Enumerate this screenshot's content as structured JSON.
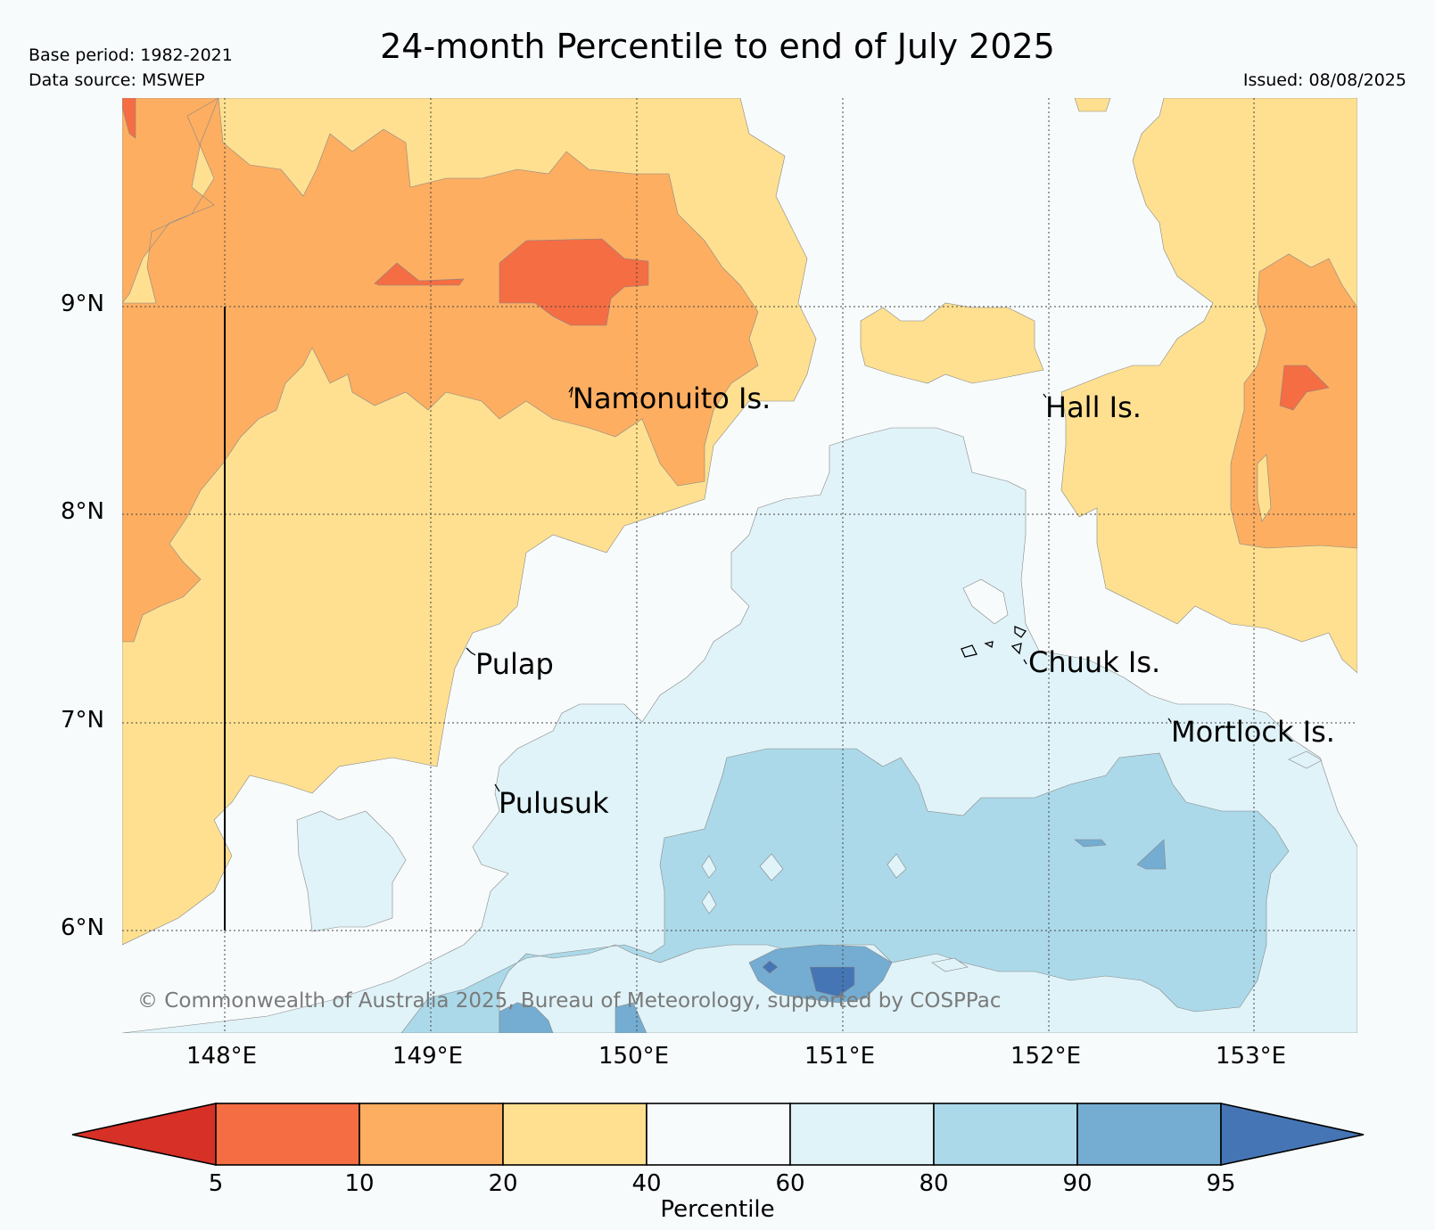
{
  "header": {
    "base_period": "Base period: 1982-2021",
    "data_source": "Data source: MSWEP",
    "title": "24-month Percentile to end of July 2025",
    "issued": "Issued: 08/08/2025"
  },
  "axes": {
    "lat_labels": [
      "9°N",
      "8°N",
      "7°N",
      "6°N"
    ],
    "lon_labels": [
      "148°E",
      "149°E",
      "150°E",
      "151°E",
      "152°E",
      "153°E"
    ]
  },
  "places": {
    "namonuito": "Namonuito Is.",
    "hall": "Hall Is.",
    "pulap": "Pulap",
    "chuuk": "Chuuk Is.",
    "mortlock": "Mortlock Is.",
    "pulusuk": "Pulusuk"
  },
  "copyright": "© Commonwealth of Australia 2025, Bureau of Meteorology, supported by COSPPac",
  "colorbar": {
    "ticks": [
      "5",
      "10",
      "20",
      "40",
      "60",
      "80",
      "90",
      "95"
    ],
    "label": "Percentile",
    "colors": [
      "#d73027",
      "#f46d43",
      "#fdae61",
      "#fee090",
      "#f7fbfc",
      "#e0f3f8",
      "#abd9e9",
      "#74add1",
      "#4575b4"
    ]
  }
}
